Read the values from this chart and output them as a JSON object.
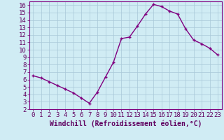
{
  "x": [
    0,
    1,
    2,
    3,
    4,
    5,
    6,
    7,
    8,
    9,
    10,
    11,
    12,
    13,
    14,
    15,
    16,
    17,
    18,
    19,
    20,
    21,
    22,
    23
  ],
  "y": [
    6.5,
    6.2,
    5.7,
    5.2,
    4.7,
    4.2,
    3.5,
    2.8,
    4.3,
    6.3,
    8.3,
    11.5,
    11.7,
    13.2,
    14.8,
    16.1,
    15.8,
    15.2,
    14.8,
    12.8,
    11.3,
    10.8,
    10.2,
    9.3
  ],
  "line_color": "#800080",
  "marker_color": "#800080",
  "bg_color": "#d0ecf4",
  "grid_color": "#a8c8d8",
  "xlabel": "Windchill (Refroidissement éolien,°C)",
  "xlim": [
    -0.5,
    23.5
  ],
  "ylim": [
    2,
    16.5
  ],
  "xtick_labels": [
    "0",
    "1",
    "2",
    "3",
    "4",
    "5",
    "6",
    "7",
    "8",
    "9",
    "10",
    "11",
    "12",
    "13",
    "14",
    "15",
    "16",
    "17",
    "18",
    "19",
    "20",
    "21",
    "22",
    "23"
  ],
  "yticks": [
    2,
    3,
    4,
    5,
    6,
    7,
    8,
    9,
    10,
    11,
    12,
    13,
    14,
    15,
    16
  ],
  "xlabel_fontsize": 7,
  "tick_fontsize": 6.5,
  "line_width": 1.0,
  "marker_size": 3.5
}
